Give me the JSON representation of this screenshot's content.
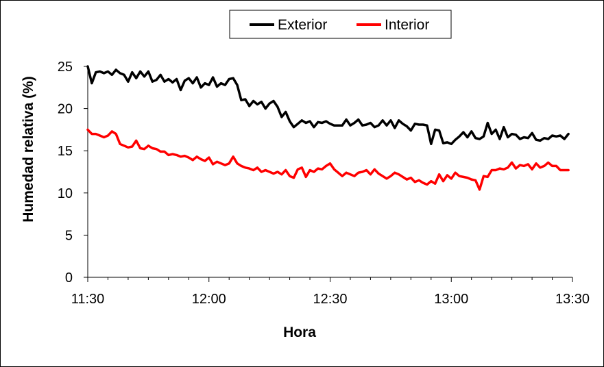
{
  "chart_data": {
    "type": "line",
    "xlabel": "Hora",
    "ylabel": "Humedad relativa (%)",
    "xlim": [
      "11:30",
      "13:30"
    ],
    "ylim": [
      0,
      25
    ],
    "x_ticks": [
      "11:30",
      "12:00",
      "12:30",
      "13:00",
      "13:30"
    ],
    "y_ticks": [
      "0",
      "5",
      "10",
      "15",
      "20",
      "25"
    ],
    "grid": false,
    "legend": "top-center",
    "series": [
      {
        "name": "Exterior",
        "color": "#000000",
        "points": [
          [
            "11:30",
            25.0
          ],
          [
            "11:31",
            23.0
          ],
          [
            "11:32",
            24.3
          ],
          [
            "11:33",
            24.4
          ],
          [
            "11:34",
            24.2
          ],
          [
            "11:35",
            24.4
          ],
          [
            "11:36",
            24.0
          ],
          [
            "11:37",
            24.6
          ],
          [
            "11:38",
            24.2
          ],
          [
            "11:39",
            24.0
          ],
          [
            "11:40",
            23.2
          ],
          [
            "11:41",
            24.3
          ],
          [
            "11:42",
            23.6
          ],
          [
            "11:43",
            24.4
          ],
          [
            "11:44",
            23.8
          ],
          [
            "11:45",
            24.4
          ],
          [
            "11:46",
            23.2
          ],
          [
            "11:47",
            23.4
          ],
          [
            "11:48",
            24.0
          ],
          [
            "11:49",
            23.2
          ],
          [
            "11:50",
            23.5
          ],
          [
            "11:51",
            23.1
          ],
          [
            "11:52",
            23.5
          ],
          [
            "11:53",
            22.2
          ],
          [
            "11:54",
            23.3
          ],
          [
            "11:55",
            23.6
          ],
          [
            "11:56",
            23.0
          ],
          [
            "11:57",
            23.7
          ],
          [
            "11:58",
            22.5
          ],
          [
            "11:59",
            23.0
          ],
          [
            "12:00",
            22.8
          ],
          [
            "12:01",
            23.7
          ],
          [
            "12:02",
            22.6
          ],
          [
            "12:03",
            23.0
          ],
          [
            "12:04",
            22.8
          ],
          [
            "12:05",
            23.5
          ],
          [
            "12:06",
            23.6
          ],
          [
            "12:07",
            22.8
          ],
          [
            "12:08",
            21.0
          ],
          [
            "12:09",
            21.1
          ],
          [
            "12:10",
            20.3
          ],
          [
            "12:11",
            20.9
          ],
          [
            "12:12",
            20.5
          ],
          [
            "12:13",
            20.8
          ],
          [
            "12:14",
            20.0
          ],
          [
            "12:15",
            20.6
          ],
          [
            "12:16",
            20.9
          ],
          [
            "12:17",
            20.2
          ],
          [
            "12:18",
            19.0
          ],
          [
            "12:19",
            19.6
          ],
          [
            "12:20",
            18.5
          ],
          [
            "12:21",
            17.8
          ],
          [
            "12:22",
            18.2
          ],
          [
            "12:23",
            18.6
          ],
          [
            "12:24",
            18.3
          ],
          [
            "12:25",
            18.5
          ],
          [
            "12:26",
            17.8
          ],
          [
            "12:27",
            18.4
          ],
          [
            "12:28",
            18.3
          ],
          [
            "12:29",
            18.5
          ],
          [
            "12:30",
            18.2
          ],
          [
            "12:31",
            18.0
          ],
          [
            "12:32",
            18.0
          ],
          [
            "12:33",
            18.0
          ],
          [
            "12:34",
            18.7
          ],
          [
            "12:35",
            18.0
          ],
          [
            "12:36",
            18.3
          ],
          [
            "12:37",
            18.7
          ],
          [
            "12:38",
            18.0
          ],
          [
            "12:39",
            18.1
          ],
          [
            "12:40",
            18.3
          ],
          [
            "12:41",
            17.8
          ],
          [
            "12:42",
            18.0
          ],
          [
            "12:43",
            18.6
          ],
          [
            "12:44",
            18.0
          ],
          [
            "12:45",
            18.6
          ],
          [
            "12:46",
            17.7
          ],
          [
            "12:47",
            18.6
          ],
          [
            "12:48",
            18.2
          ],
          [
            "12:49",
            17.9
          ],
          [
            "12:50",
            17.4
          ],
          [
            "12:51",
            18.2
          ],
          [
            "12:52",
            18.1
          ],
          [
            "12:53",
            18.1
          ],
          [
            "12:54",
            18.0
          ],
          [
            "12:55",
            15.8
          ],
          [
            "12:56",
            17.5
          ],
          [
            "12:57",
            17.4
          ],
          [
            "12:58",
            15.9
          ],
          [
            "12:59",
            16.0
          ],
          [
            "13:00",
            15.8
          ],
          [
            "13:01",
            16.3
          ],
          [
            "13:02",
            16.7
          ],
          [
            "13:03",
            17.2
          ],
          [
            "13:04",
            16.6
          ],
          [
            "13:05",
            17.3
          ],
          [
            "13:06",
            16.5
          ],
          [
            "13:07",
            16.4
          ],
          [
            "13:08",
            16.7
          ],
          [
            "13:09",
            18.3
          ],
          [
            "13:10",
            17.0
          ],
          [
            "13:11",
            17.5
          ],
          [
            "13:12",
            16.4
          ],
          [
            "13:13",
            17.8
          ],
          [
            "13:14",
            16.6
          ],
          [
            "13:15",
            17.0
          ],
          [
            "13:16",
            16.9
          ],
          [
            "13:17",
            16.4
          ],
          [
            "13:18",
            16.6
          ],
          [
            "13:19",
            16.5
          ],
          [
            "13:20",
            17.1
          ],
          [
            "13:21",
            16.3
          ],
          [
            "13:22",
            16.2
          ],
          [
            "13:23",
            16.5
          ],
          [
            "13:24",
            16.4
          ],
          [
            "13:25",
            16.8
          ],
          [
            "13:26",
            16.7
          ],
          [
            "13:27",
            16.8
          ],
          [
            "13:28",
            16.4
          ],
          [
            "13:29",
            17.0
          ]
        ]
      },
      {
        "name": "Interior",
        "color": "#ff0000",
        "points": [
          [
            "11:30",
            17.5
          ],
          [
            "11:31",
            17.0
          ],
          [
            "11:32",
            17.0
          ],
          [
            "11:33",
            16.8
          ],
          [
            "11:34",
            16.6
          ],
          [
            "11:35",
            16.8
          ],
          [
            "11:36",
            17.3
          ],
          [
            "11:37",
            17.0
          ],
          [
            "11:38",
            15.8
          ],
          [
            "11:39",
            15.6
          ],
          [
            "11:40",
            15.4
          ],
          [
            "11:41",
            15.5
          ],
          [
            "11:42",
            16.2
          ],
          [
            "11:43",
            15.3
          ],
          [
            "11:44",
            15.2
          ],
          [
            "11:45",
            15.6
          ],
          [
            "11:46",
            15.3
          ],
          [
            "11:47",
            15.2
          ],
          [
            "11:48",
            14.9
          ],
          [
            "11:49",
            14.9
          ],
          [
            "11:50",
            14.5
          ],
          [
            "11:51",
            14.6
          ],
          [
            "11:52",
            14.5
          ],
          [
            "11:53",
            14.3
          ],
          [
            "11:54",
            14.4
          ],
          [
            "11:55",
            14.2
          ],
          [
            "11:56",
            13.9
          ],
          [
            "11:57",
            14.3
          ],
          [
            "11:58",
            14.0
          ],
          [
            "11:59",
            13.8
          ],
          [
            "12:00",
            14.2
          ],
          [
            "12:01",
            13.4
          ],
          [
            "12:02",
            13.7
          ],
          [
            "12:03",
            13.5
          ],
          [
            "12:04",
            13.3
          ],
          [
            "12:05",
            13.5
          ],
          [
            "12:06",
            14.3
          ],
          [
            "12:07",
            13.5
          ],
          [
            "12:08",
            13.2
          ],
          [
            "12:09",
            13.0
          ],
          [
            "12:10",
            12.9
          ],
          [
            "12:11",
            12.7
          ],
          [
            "12:12",
            13.0
          ],
          [
            "12:13",
            12.5
          ],
          [
            "12:14",
            12.7
          ],
          [
            "12:15",
            12.5
          ],
          [
            "12:16",
            12.3
          ],
          [
            "12:17",
            12.5
          ],
          [
            "12:18",
            12.2
          ],
          [
            "12:19",
            12.7
          ],
          [
            "12:20",
            12.0
          ],
          [
            "12:21",
            11.8
          ],
          [
            "12:22",
            12.8
          ],
          [
            "12:23",
            13.0
          ],
          [
            "12:24",
            11.9
          ],
          [
            "12:25",
            12.7
          ],
          [
            "12:26",
            12.5
          ],
          [
            "12:27",
            12.9
          ],
          [
            "12:28",
            12.8
          ],
          [
            "12:29",
            13.2
          ],
          [
            "12:30",
            13.5
          ],
          [
            "12:31",
            12.8
          ],
          [
            "12:32",
            12.4
          ],
          [
            "12:33",
            12.0
          ],
          [
            "12:34",
            12.4
          ],
          [
            "12:35",
            12.2
          ],
          [
            "12:36",
            12.0
          ],
          [
            "12:37",
            12.4
          ],
          [
            "12:38",
            12.5
          ],
          [
            "12:39",
            12.7
          ],
          [
            "12:40",
            12.2
          ],
          [
            "12:41",
            12.8
          ],
          [
            "12:42",
            12.3
          ],
          [
            "12:43",
            12.0
          ],
          [
            "12:44",
            11.7
          ],
          [
            "12:45",
            12.0
          ],
          [
            "12:46",
            12.4
          ],
          [
            "12:47",
            12.2
          ],
          [
            "12:48",
            11.9
          ],
          [
            "12:49",
            11.6
          ],
          [
            "12:50",
            11.8
          ],
          [
            "12:51",
            11.3
          ],
          [
            "12:52",
            11.5
          ],
          [
            "12:53",
            11.2
          ],
          [
            "12:54",
            11.0
          ],
          [
            "12:55",
            11.4
          ],
          [
            "12:56",
            11.1
          ],
          [
            "12:57",
            12.2
          ],
          [
            "12:58",
            11.4
          ],
          [
            "12:59",
            12.1
          ],
          [
            "13:00",
            11.7
          ],
          [
            "13:01",
            12.4
          ],
          [
            "13:02",
            12.0
          ],
          [
            "13:03",
            11.9
          ],
          [
            "13:04",
            11.8
          ],
          [
            "13:05",
            11.6
          ],
          [
            "13:06",
            11.5
          ],
          [
            "13:07",
            10.4
          ],
          [
            "13:08",
            12.0
          ],
          [
            "13:09",
            11.9
          ],
          [
            "13:10",
            12.7
          ],
          [
            "13:11",
            12.7
          ],
          [
            "13:12",
            12.9
          ],
          [
            "13:13",
            12.8
          ],
          [
            "13:14",
            13.0
          ],
          [
            "13:15",
            13.6
          ],
          [
            "13:16",
            12.9
          ],
          [
            "13:17",
            13.3
          ],
          [
            "13:18",
            13.2
          ],
          [
            "13:19",
            13.4
          ],
          [
            "13:20",
            12.8
          ],
          [
            "13:21",
            13.5
          ],
          [
            "13:22",
            13.0
          ],
          [
            "13:23",
            13.2
          ],
          [
            "13:24",
            13.6
          ],
          [
            "13:25",
            13.2
          ],
          [
            "13:26",
            13.2
          ],
          [
            "13:27",
            12.7
          ],
          [
            "13:28",
            12.7
          ],
          [
            "13:29",
            12.7
          ]
        ]
      }
    ]
  }
}
